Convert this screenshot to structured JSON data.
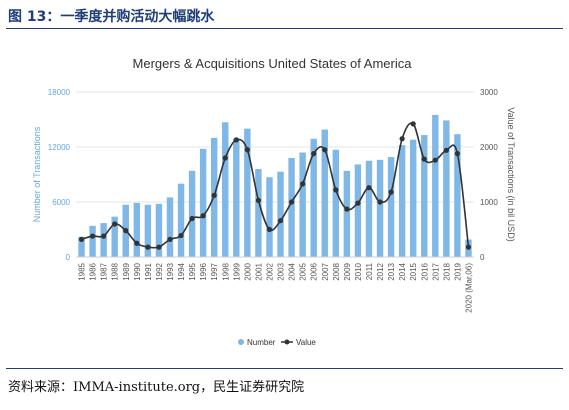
{
  "figure": {
    "title": "图 13：一季度并购活动大幅跳水",
    "source": "资料来源：IMMA-institute.org，民生证券研究院"
  },
  "colors": {
    "bar": "#7fb8e6",
    "line": "#333333",
    "header_rule": "#1f3d7a"
  },
  "chart_data": {
    "type": "bar",
    "title": "Mergers & Acquisitions United States of America",
    "categories": [
      "1985",
      "1986",
      "1987",
      "1988",
      "1989",
      "1990",
      "1991",
      "1992",
      "1993",
      "1994",
      "1995",
      "1996",
      "1997",
      "1998",
      "1999",
      "2000",
      "2001",
      "2002",
      "2003",
      "2004",
      "2005",
      "2006",
      "2007",
      "2008",
      "2009",
      "2010",
      "2011",
      "2012",
      "2013",
      "2014",
      "2015",
      "2016",
      "2017",
      "2018",
      "2019",
      "2020 (Mar,06)"
    ],
    "ylabel_left": "Number of Transactions",
    "ylabel_right": "Value of Transactions (in bil USD)",
    "ylim_left": [
      0,
      18000
    ],
    "ylim_right": [
      0,
      3000
    ],
    "yticks_left": [
      "0",
      "6000",
      "12000",
      "18000"
    ],
    "yticks_right": [
      "0",
      "1000",
      "2000",
      "3000"
    ],
    "grid": true,
    "legend_position": "bottom",
    "series": [
      {
        "name": "Number",
        "type": "bar",
        "axis": "left",
        "values": [
          2200,
          3400,
          3700,
          4400,
          5700,
          5900,
          5700,
          5800,
          6500,
          8000,
          9400,
          11800,
          13000,
          14700,
          12900,
          14000,
          9600,
          8700,
          9300,
          10800,
          11400,
          12900,
          13900,
          11700,
          9400,
          10100,
          10500,
          10600,
          10900,
          12200,
          12800,
          13300,
          15500,
          14900,
          13400,
          1900
        ]
      },
      {
        "name": "Value",
        "type": "line",
        "axis": "right",
        "values": [
          320,
          380,
          380,
          600,
          480,
          250,
          180,
          180,
          320,
          390,
          700,
          750,
          1120,
          1800,
          2130,
          1950,
          1030,
          500,
          660,
          1000,
          1330,
          1880,
          1950,
          1220,
          870,
          980,
          1260,
          1000,
          1180,
          2150,
          2420,
          1780,
          1760,
          1940,
          1880,
          180
        ]
      }
    ]
  }
}
